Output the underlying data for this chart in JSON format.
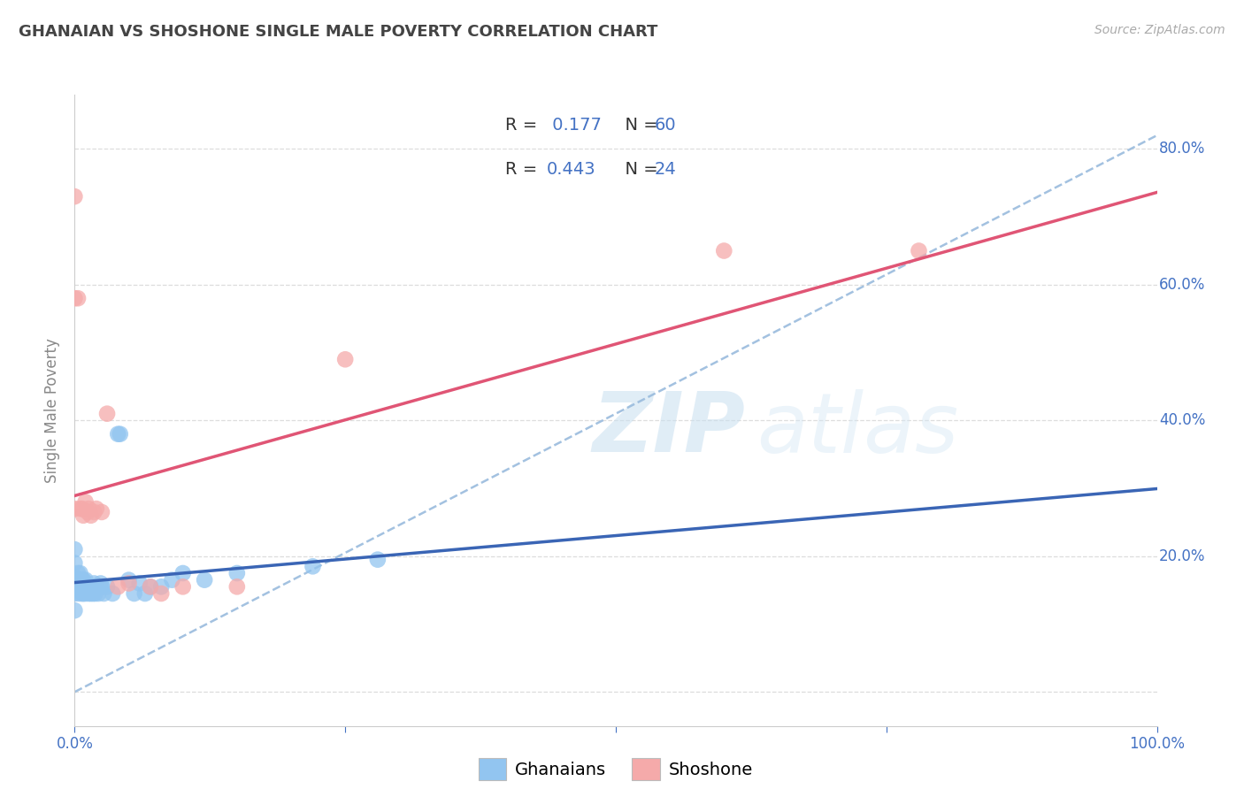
{
  "title": "GHANAIAN VS SHOSHONE SINGLE MALE POVERTY CORRELATION CHART",
  "source": "Source: ZipAtlas.com",
  "ylabel": "Single Male Poverty",
  "xlim": [
    0.0,
    1.0
  ],
  "ylim": [
    -0.05,
    0.88
  ],
  "ghanaian_color": "#92C5F0",
  "shoshone_color": "#F5AAAA",
  "ghanaian_line_color": "#3A65B5",
  "shoshone_line_color": "#E05575",
  "dash_color": "#99BBDD",
  "r_ghanaian": 0.177,
  "n_ghanaian": 60,
  "r_shoshone": 0.443,
  "n_shoshone": 24,
  "ghanaian_x": [
    0.0,
    0.0,
    0.0,
    0.0,
    0.0,
    0.0,
    0.0,
    0.0,
    0.003,
    0.003,
    0.003,
    0.004,
    0.004,
    0.004,
    0.005,
    0.005,
    0.005,
    0.006,
    0.006,
    0.007,
    0.007,
    0.007,
    0.008,
    0.008,
    0.009,
    0.009,
    0.01,
    0.01,
    0.011,
    0.012,
    0.013,
    0.013,
    0.014,
    0.015,
    0.015,
    0.016,
    0.017,
    0.018,
    0.019,
    0.02,
    0.022,
    0.024,
    0.025,
    0.027,
    0.03,
    0.035,
    0.04,
    0.042,
    0.05,
    0.055,
    0.06,
    0.065,
    0.07,
    0.08,
    0.09,
    0.1,
    0.12,
    0.15,
    0.22,
    0.28
  ],
  "ghanaian_y": [
    0.21,
    0.19,
    0.17,
    0.16,
    0.155,
    0.15,
    0.145,
    0.12,
    0.175,
    0.165,
    0.155,
    0.165,
    0.155,
    0.145,
    0.175,
    0.165,
    0.155,
    0.16,
    0.15,
    0.165,
    0.155,
    0.145,
    0.165,
    0.145,
    0.16,
    0.15,
    0.165,
    0.145,
    0.155,
    0.155,
    0.155,
    0.145,
    0.155,
    0.155,
    0.145,
    0.155,
    0.145,
    0.16,
    0.145,
    0.155,
    0.145,
    0.16,
    0.155,
    0.145,
    0.155,
    0.145,
    0.38,
    0.38,
    0.165,
    0.145,
    0.16,
    0.145,
    0.155,
    0.155,
    0.165,
    0.175,
    0.165,
    0.175,
    0.185,
    0.195
  ],
  "shoshone_x": [
    0.0,
    0.0,
    0.0,
    0.003,
    0.005,
    0.007,
    0.008,
    0.01,
    0.012,
    0.013,
    0.015,
    0.018,
    0.02,
    0.025,
    0.03,
    0.04,
    0.05,
    0.07,
    0.08,
    0.1,
    0.15,
    0.25,
    0.6,
    0.78
  ],
  "shoshone_y": [
    0.73,
    0.58,
    0.27,
    0.58,
    0.27,
    0.27,
    0.26,
    0.28,
    0.265,
    0.27,
    0.26,
    0.265,
    0.27,
    0.265,
    0.41,
    0.155,
    0.16,
    0.155,
    0.145,
    0.155,
    0.155,
    0.49,
    0.65,
    0.65
  ],
  "title_color": "#444444",
  "tick_color": "#4472C4",
  "grid_color": "#DDDDDD",
  "title_fontsize": 13,
  "axis_fontsize": 12,
  "tick_fontsize": 12,
  "legend_fontsize": 14
}
